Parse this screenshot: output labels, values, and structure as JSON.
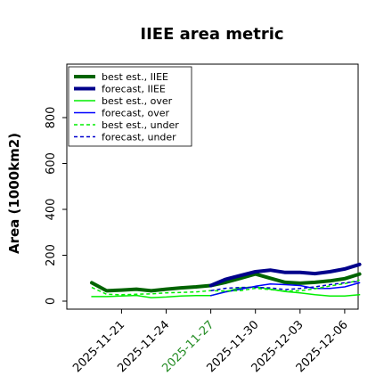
{
  "chart_data": {
    "type": "line",
    "title": "IIEE area metric",
    "xlabel": "",
    "ylabel": "Area (1000km2)",
    "ylim": [
      -20,
      1000
    ],
    "grid": false,
    "legend_position": "top-left",
    "x": [
      "2025-11-19",
      "2025-11-20",
      "2025-11-21",
      "2025-11-22",
      "2025-11-23",
      "2025-11-24",
      "2025-11-25",
      "2025-11-26",
      "2025-11-27",
      "2025-11-28",
      "2025-11-29",
      "2025-11-30",
      "2025-12-01",
      "2025-12-02",
      "2025-12-03",
      "2025-12-04",
      "2025-12-05",
      "2025-12-06",
      "2025-12-07"
    ],
    "x_tick_labels": [
      "2025-11-21",
      "2025-11-24",
      "2025-11-27",
      "2025-11-30",
      "2025-12-03",
      "2025-12-06"
    ],
    "x_tick_highlight": "2025-11-27",
    "x_tick_highlight_color": "#228B22",
    "y_ticks": [
      0,
      200,
      400,
      600,
      800
    ],
    "series": [
      {
        "name": "best est., IIEE",
        "color": "#006400",
        "style": "solid",
        "width": 4,
        "values": [
          80,
          45,
          48,
          52,
          45,
          52,
          58,
          62,
          68,
          82,
          100,
          118,
          100,
          82,
          78,
          82,
          88,
          98,
          118
        ]
      },
      {
        "name": "forecast, IIEE",
        "color": "#00008B",
        "style": "solid",
        "width": 4,
        "values": [
          null,
          null,
          null,
          null,
          null,
          null,
          null,
          null,
          68,
          95,
          112,
          128,
          135,
          125,
          125,
          120,
          128,
          140,
          160
        ]
      },
      {
        "name": "best est., over",
        "color": "#00EE00",
        "style": "solid",
        "width": 1.5,
        "values": [
          20,
          20,
          22,
          25,
          15,
          18,
          22,
          24,
          24,
          42,
          58,
          62,
          52,
          42,
          36,
          28,
          22,
          22,
          28
        ]
      },
      {
        "name": "forecast, over",
        "color": "#0000FF",
        "style": "solid",
        "width": 1.5,
        "values": [
          null,
          null,
          null,
          null,
          null,
          null,
          null,
          null,
          24,
          40,
          52,
          65,
          75,
          72,
          68,
          55,
          55,
          62,
          80
        ]
      },
      {
        "name": "best est., under",
        "color": "#00EE00",
        "style": "dashed",
        "width": 1.5,
        "values": [
          60,
          30,
          28,
          30,
          32,
          36,
          38,
          40,
          46,
          44,
          46,
          56,
          50,
          44,
          45,
          54,
          66,
          76,
          92
        ]
      },
      {
        "name": "forecast, under",
        "color": "#0000CD",
        "style": "dashed",
        "width": 1.5,
        "values": [
          null,
          null,
          null,
          null,
          null,
          null,
          null,
          null,
          46,
          56,
          60,
          60,
          58,
          50,
          55,
          62,
          72,
          80,
          86
        ]
      }
    ]
  }
}
